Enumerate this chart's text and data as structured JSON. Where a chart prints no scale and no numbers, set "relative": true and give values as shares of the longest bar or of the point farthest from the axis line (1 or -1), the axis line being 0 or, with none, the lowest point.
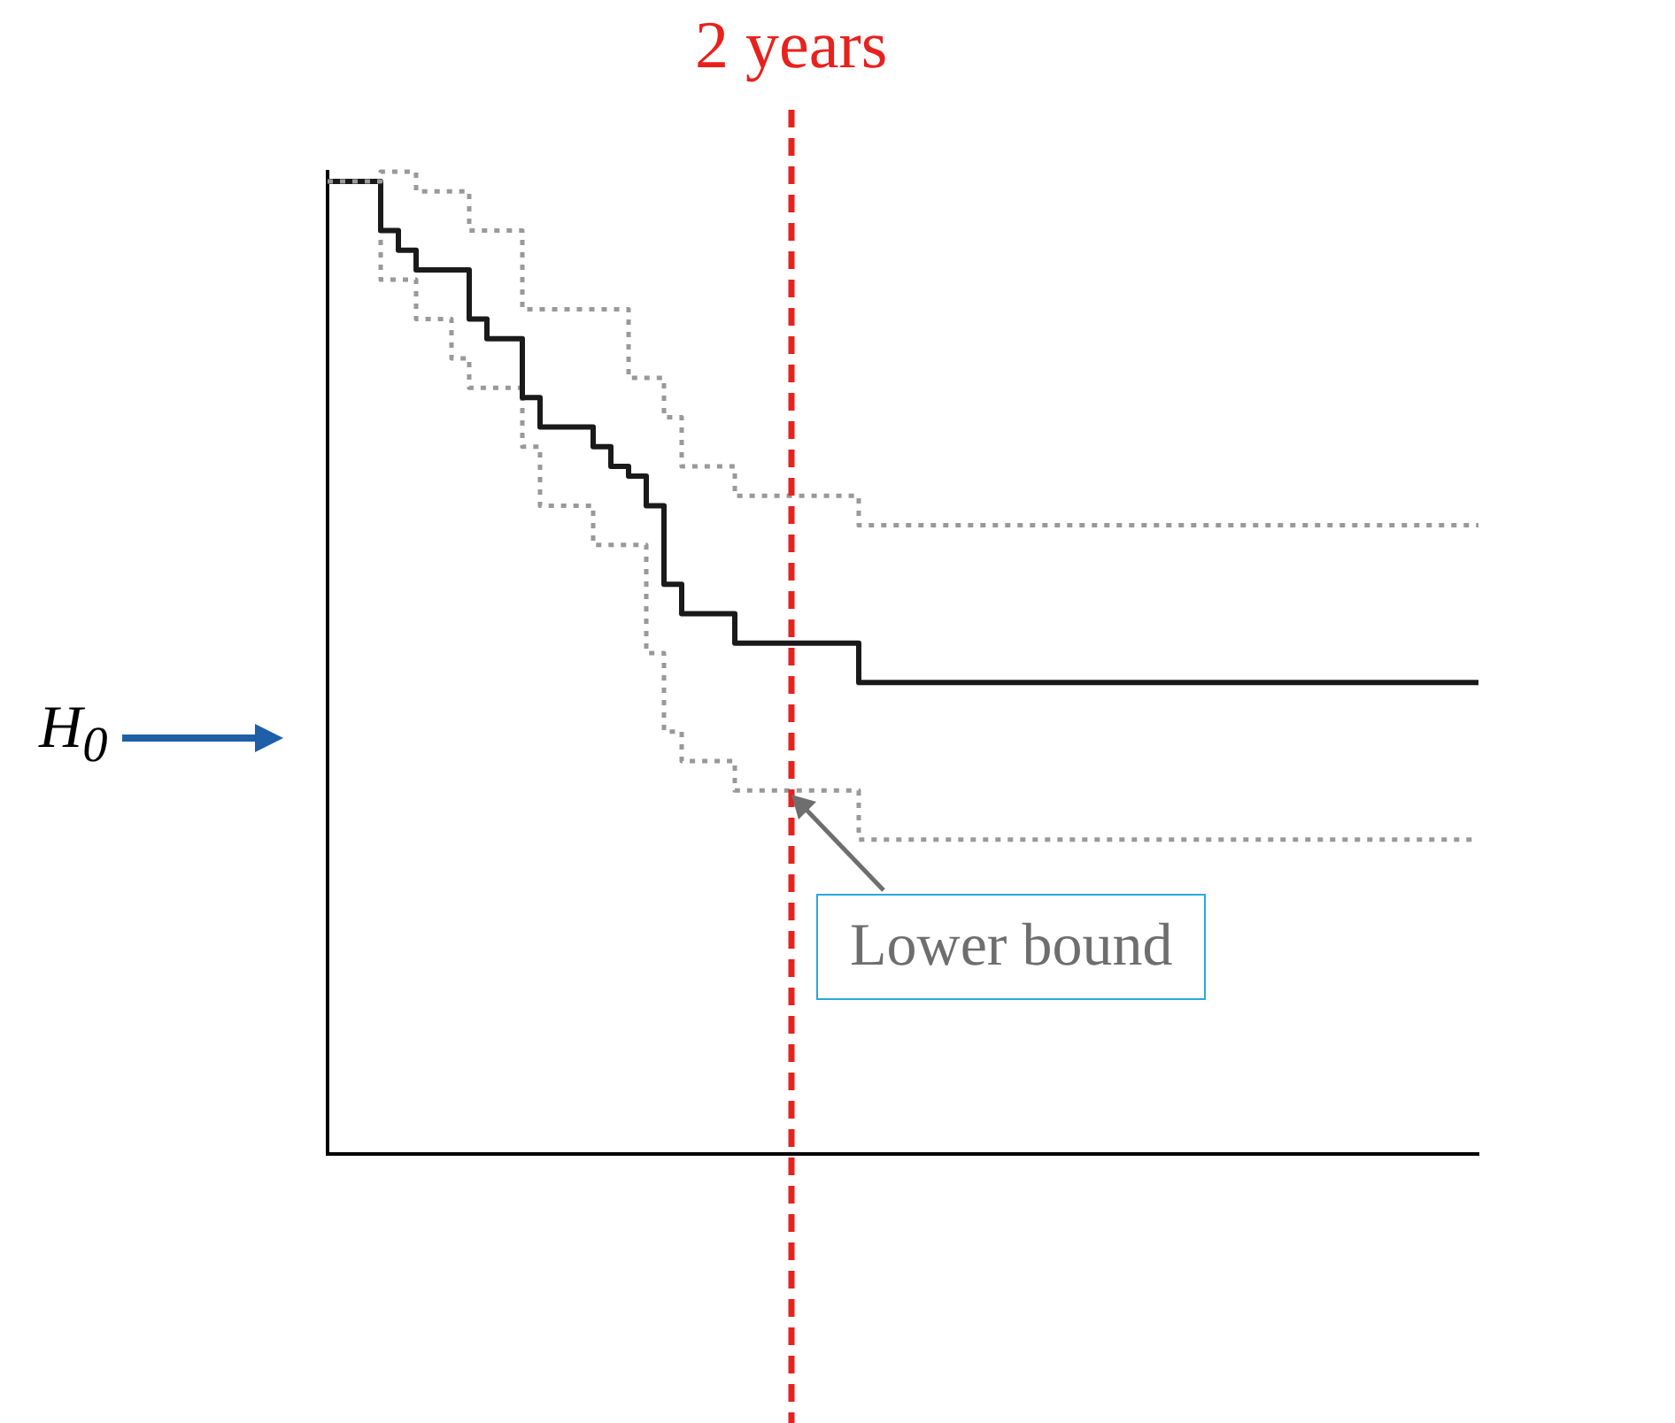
{
  "chart_data": {
    "type": "step",
    "relative": true,
    "grid": false,
    "legend": false,
    "marker": "none",
    "categories": [
      null,
      null,
      null,
      null,
      null,
      null,
      null,
      null,
      null,
      null,
      null,
      null,
      null,
      null,
      null,
      null,
      null,
      null,
      null,
      null,
      null,
      null,
      null,
      null,
      null,
      null,
      null,
      null,
      null,
      null,
      null,
      null,
      null,
      null,
      null,
      null,
      null,
      null,
      null,
      null,
      null,
      null,
      null,
      null,
      null,
      null,
      null,
      null,
      null,
      null,
      null,
      null,
      null,
      null,
      null,
      null,
      null,
      null,
      null,
      null,
      null,
      null,
      null,
      null,
      null,
      null
    ],
    "series": [
      {
        "color": "#999999",
        "line_style": "dotted",
        "values": [
          0.99,
          0.99,
          0.99,
          1.0,
          1.0,
          0.98,
          0.98,
          0.98,
          0.94,
          0.94,
          0.94,
          0.86,
          0.86,
          0.86,
          0.86,
          0.86,
          0.86,
          0.79,
          0.79,
          0.75,
          0.7,
          0.7,
          0.7,
          0.67,
          0.67,
          0.67,
          0.67,
          0.67,
          0.67,
          0.67,
          0.64,
          0.64,
          0.64,
          0.64,
          0.64,
          0.64,
          0.64,
          0.64,
          0.64,
          0.64,
          0.64,
          0.64,
          0.64,
          0.64,
          0.64,
          0.64,
          0.64,
          0.64,
          0.64,
          0.64,
          0.64,
          0.64,
          0.64,
          0.64,
          0.64,
          0.64,
          0.64,
          0.64,
          0.64,
          0.64,
          0.64,
          0.64,
          0.64,
          0.64,
          0.64,
          0.64
        ]
      },
      {
        "color": "#1a1a1a",
        "line_style": "solid",
        "values": [
          0.99,
          0.99,
          0.99,
          0.94,
          0.92,
          0.9,
          0.9,
          0.9,
          0.85,
          0.83,
          0.83,
          0.77,
          0.74,
          0.74,
          0.74,
          0.72,
          0.7,
          0.69,
          0.66,
          0.58,
          0.55,
          0.55,
          0.55,
          0.52,
          0.52,
          0.52,
          0.52,
          0.52,
          0.52,
          0.52,
          0.48,
          0.48,
          0.48,
          0.48,
          0.48,
          0.48,
          0.48,
          0.48,
          0.48,
          0.48,
          0.48,
          0.48,
          0.48,
          0.48,
          0.48,
          0.48,
          0.48,
          0.48,
          0.48,
          0.48,
          0.48,
          0.48,
          0.48,
          0.48,
          0.48,
          0.48,
          0.48,
          0.48,
          0.48,
          0.48,
          0.48,
          0.48,
          0.48,
          0.48,
          0.48,
          0.48
        ]
      },
      {
        "color": "#999999",
        "line_style": "dotted",
        "values": [
          0.99,
          0.99,
          0.99,
          0.89,
          0.89,
          0.85,
          0.85,
          0.81,
          0.78,
          0.78,
          0.78,
          0.72,
          0.66,
          0.66,
          0.66,
          0.62,
          0.62,
          0.62,
          0.51,
          0.43,
          0.4,
          0.4,
          0.4,
          0.37,
          0.37,
          0.37,
          0.37,
          0.37,
          0.37,
          0.37,
          0.32,
          0.32,
          0.32,
          0.32,
          0.32,
          0.32,
          0.32,
          0.32,
          0.32,
          0.32,
          0.32,
          0.32,
          0.32,
          0.32,
          0.32,
          0.32,
          0.32,
          0.32,
          0.32,
          0.32,
          0.32,
          0.32,
          0.32,
          0.32,
          0.32,
          0.32,
          0.32,
          0.32,
          0.32,
          0.32,
          0.32,
          0.32,
          0.32,
          0.32,
          0.32,
          0.32
        ]
      }
    ],
    "annotations": [
      "2 years",
      "H$_{0}$",
      "Lower bound"
    ]
  }
}
